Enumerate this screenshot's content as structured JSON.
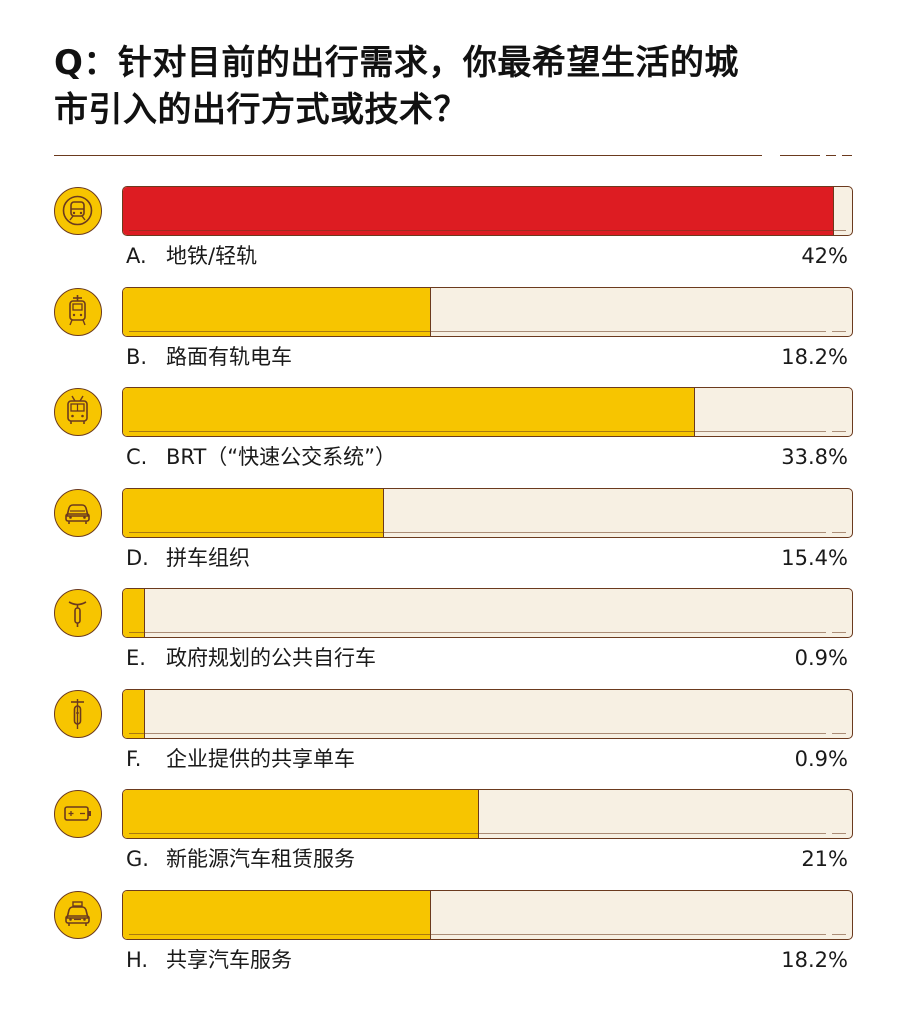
{
  "title": {
    "line1": "Q：针对目前的出行需求，你最希望生活的城",
    "line2": "市引入的出行方式或技术？"
  },
  "colors": {
    "highlight": "#dd1c22",
    "bar": "#f7c500",
    "track": "#f7f0e3",
    "outline": "#6b3a1e"
  },
  "chart_data": {
    "type": "bar",
    "orientation": "horizontal",
    "title": "Q：针对目前的出行需求，你最希望生活的城市引入的出行方式或技术？",
    "xlim": [
      0,
      43
    ],
    "categories": [
      "A. 地铁/轻轨",
      "B. 路面有轨电车",
      "C. BRT（“快速公交系统”）",
      "D. 拼车组织",
      "E. 政府规划的公共自行车",
      "F. 企业提供的共享单车",
      "G. 新能源汽车租赁服务",
      "H. 共享汽车服务"
    ],
    "values": [
      42,
      18.2,
      33.8,
      15.4,
      0.9,
      0.9,
      21,
      18.2
    ],
    "items": [
      {
        "letter": "A.",
        "label": "地铁/轻轨",
        "value_label": "42%",
        "value": 42,
        "icon": "metro-train-icon",
        "highlight": true
      },
      {
        "letter": "B.",
        "label": "路面有轨电车",
        "value_label": "18.2%",
        "value": 18.2,
        "icon": "tram-icon",
        "highlight": false
      },
      {
        "letter": "C.",
        "label": "BRT（“快速公交系统”）",
        "value_label": "33.8%",
        "value": 33.8,
        "icon": "bus-icon",
        "highlight": false
      },
      {
        "letter": "D.",
        "label": "拼车组织",
        "value_label": "15.4%",
        "value": 15.4,
        "icon": "car-icon",
        "highlight": false
      },
      {
        "letter": "E.",
        "label": "政府规划的公共自行车",
        "value_label": "0.9%",
        "value": 0.9,
        "icon": "bicycle-icon",
        "highlight": false
      },
      {
        "letter": "F.",
        "label": "企业提供的共享单车",
        "value_label": "0.9%",
        "value": 0.9,
        "icon": "shared-bike-icon",
        "highlight": false
      },
      {
        "letter": "G.",
        "label": "新能源汽车租赁服务",
        "value_label": "21%",
        "value": 21,
        "icon": "battery-icon",
        "highlight": false
      },
      {
        "letter": "H.",
        "label": "共享汽车服务",
        "value_label": "18.2%",
        "value": 18.2,
        "icon": "taxi-icon",
        "highlight": false
      }
    ]
  }
}
